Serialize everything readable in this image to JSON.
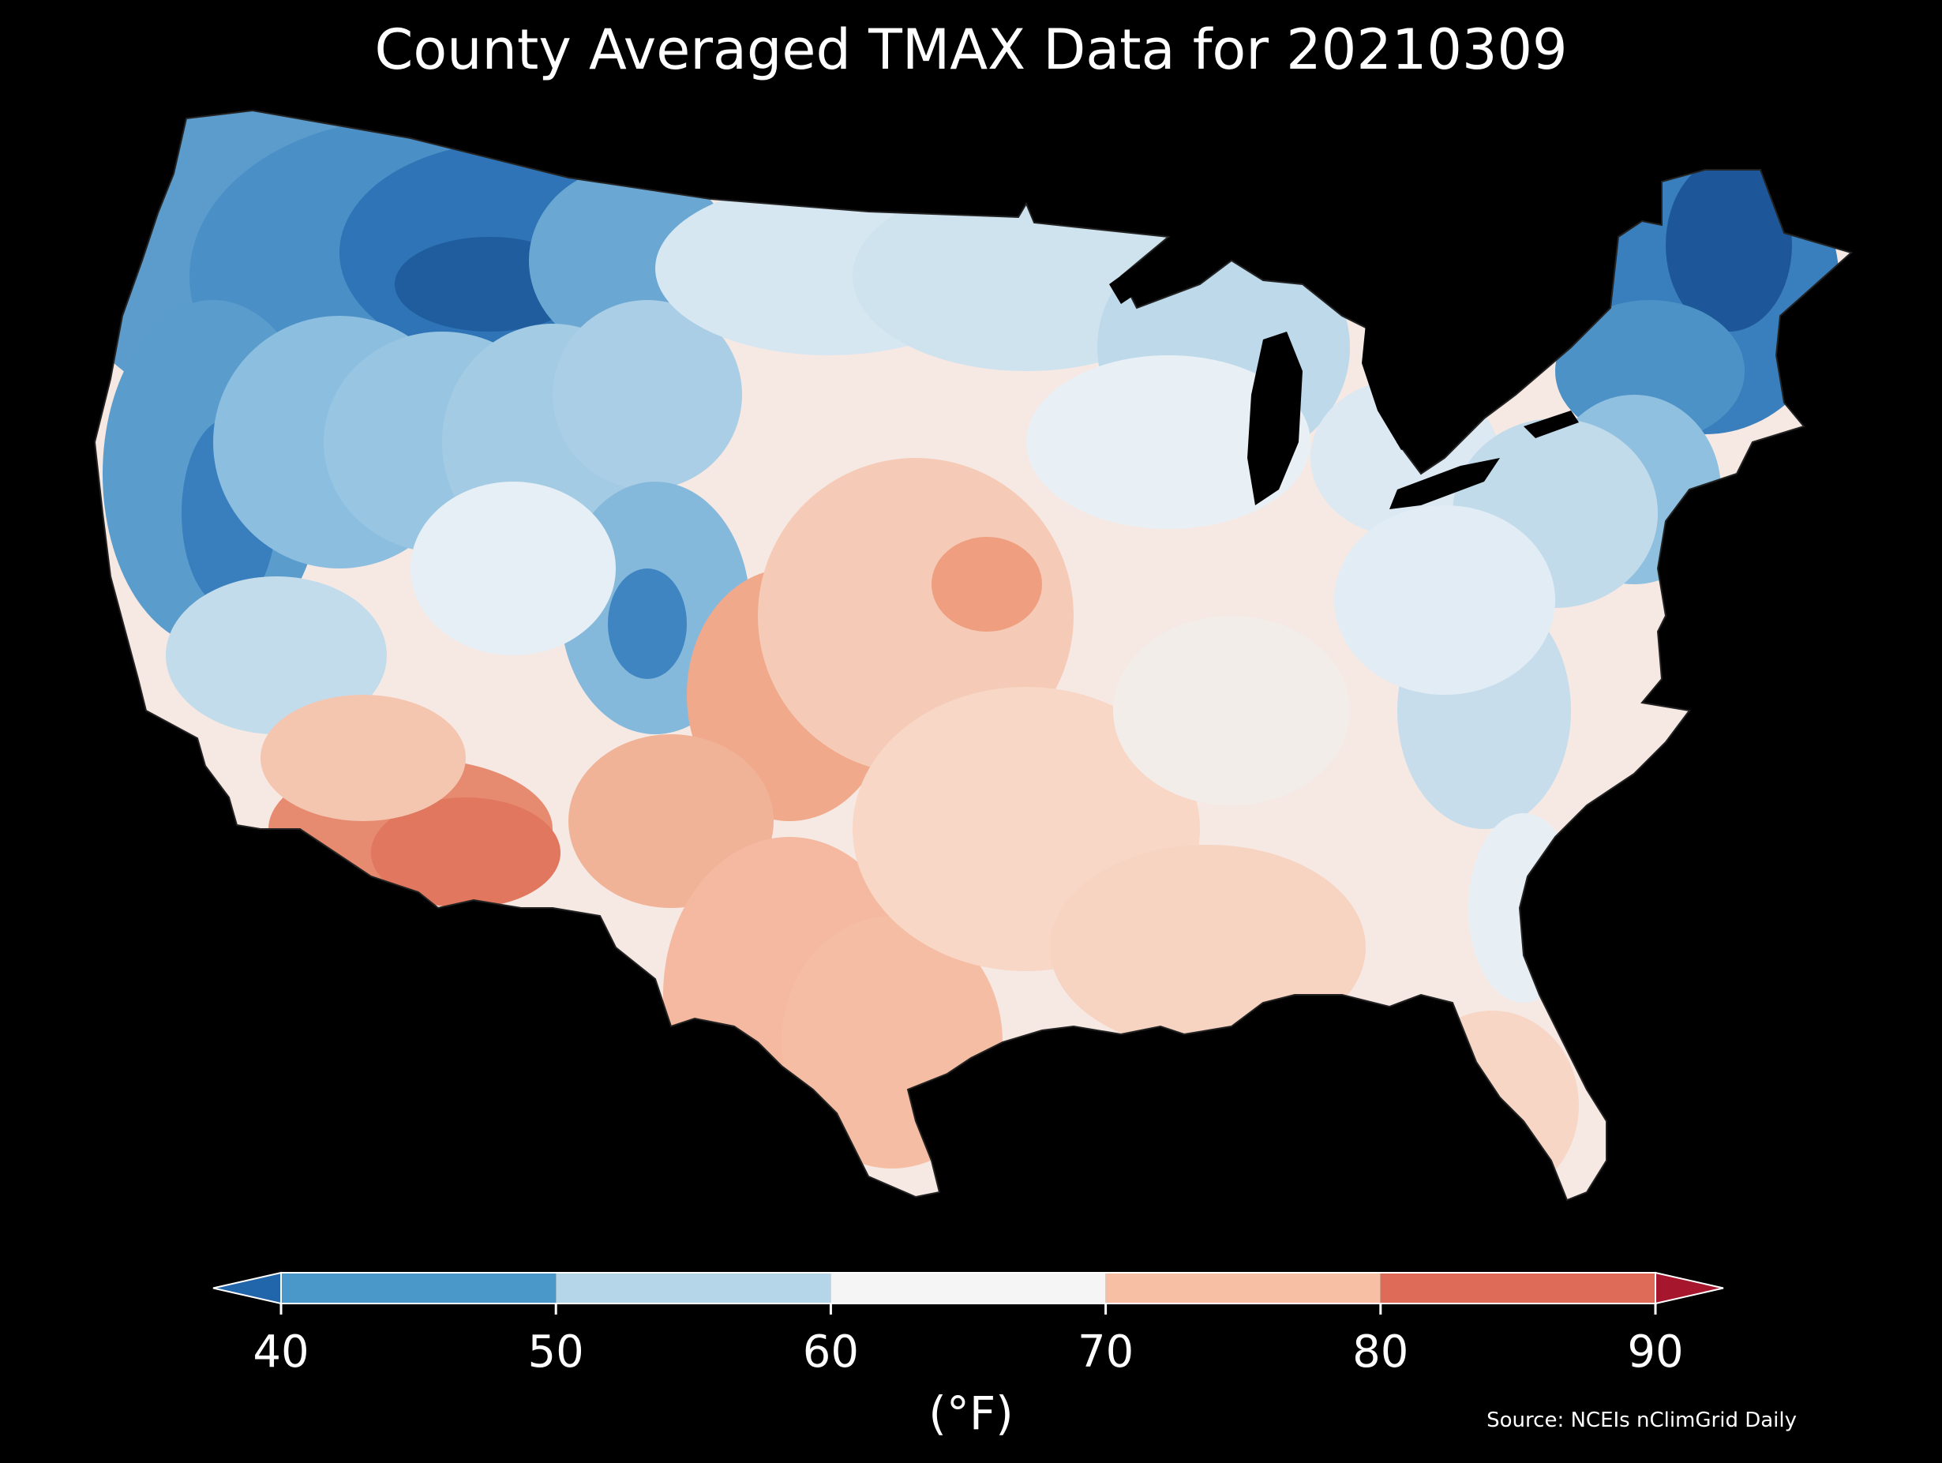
{
  "title": "County Averaged TMAX Data for 20210309",
  "colorbar": {
    "ticks": [
      "40",
      "50",
      "60",
      "70",
      "80",
      "90"
    ],
    "tick_values": [
      40,
      50,
      60,
      70,
      80,
      90
    ],
    "unit": "(°F)",
    "bins": [
      {
        "from": 40,
        "to": 50,
        "color": "#4a98c9"
      },
      {
        "from": 50,
        "to": 60,
        "color": "#b5d6e9"
      },
      {
        "from": 60,
        "to": 70,
        "color": "#f5f5f5"
      },
      {
        "from": 70,
        "to": 80,
        "color": "#f7c0a5"
      },
      {
        "from": 80,
        "to": 90,
        "color": "#de6b58"
      }
    ],
    "under_color": "#2165ab",
    "over_color": "#a6172d"
  },
  "source": "Source: NCEIs nClimGrid Daily",
  "colors": {
    "background": "#000000",
    "very_cold": "#1c5a9e",
    "cold": "#3d84c0",
    "cool": "#7db4d8",
    "mild": "#d2e6f1",
    "neutral": "#f3f3f3",
    "warm": "#f8d6c5",
    "warmer": "#f2a686",
    "hot": "#e27a62"
  }
}
